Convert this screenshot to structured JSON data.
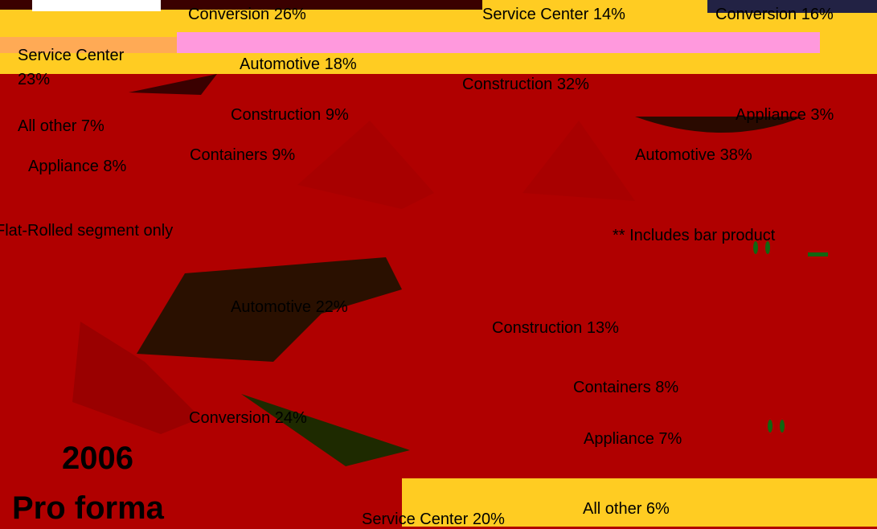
{
  "slide": {
    "labels": [
      "Conversion 26%",
      "Service Center 14%",
      "Conversion 16%",
      "Service Center 23%",
      "Automotive 18%",
      "Construction 32%",
      "Construction 9%",
      "Appliance 3%",
      "All other 7%",
      "Containers 9%",
      "Automotive 38%",
      "Appliance 8%",
      "Automotive 22%",
      "Construction 13%",
      "Containers 8%",
      "Conversion 24%",
      "Appliance 7%",
      "Service Center 20%",
      "All other 6%"
    ],
    "footnote_left": "Flat-Rolled segment only",
    "footnote_right": "** Includes bar product",
    "year": "2006",
    "caption": "Pro forma"
  }
}
